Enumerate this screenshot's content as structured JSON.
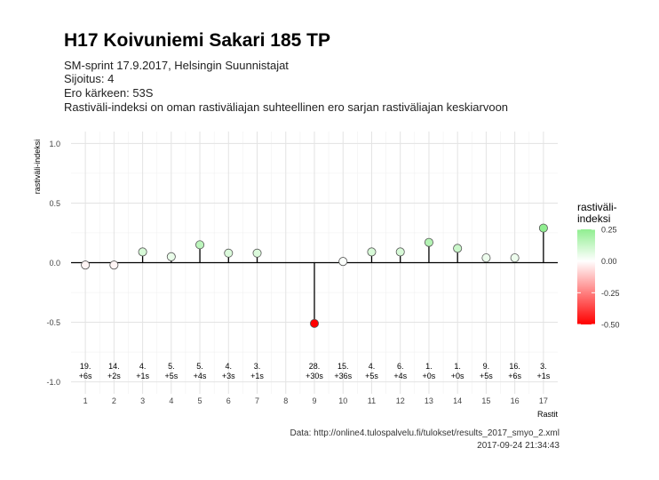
{
  "title": "H17 Koivuniemi Sakari 185 TP",
  "subtitle_lines": [
    "SM-sprint 17.9.2017, Helsingin Suunnistajat",
    "Sijoitus: 4",
    "Ero kärkeen: 53S",
    "Rastiväli-indeksi on oman rastiväliajan suhteellinen ero sarjan rastiväliajan keskiarvoon"
  ],
  "caption_source": "Data: http://online4.tulospalvelu.fi/tulokset/results_2017_smyo_2.xml",
  "caption_time": "2017-09-24 21:34:43",
  "chart_data": {
    "type": "scatter",
    "style": "lollipop",
    "xlabel": "Rastit",
    "ylabel": "rastiväli-indeksi",
    "ylim": [
      -1.0,
      1.0
    ],
    "yticks": [
      "1.0",
      "0.5",
      "0.0",
      "-0.5",
      "-1.0"
    ],
    "ytick_values": [
      1.0,
      0.5,
      0.0,
      -0.5,
      -1.0
    ],
    "xticks": [
      "1",
      "2",
      "3",
      "4",
      "5",
      "6",
      "7",
      "8",
      "9",
      "10",
      "11",
      "12",
      "13",
      "14",
      "15",
      "16",
      "17"
    ],
    "points": [
      {
        "x": 1,
        "y": -0.02,
        "label_rank": "19.",
        "label_diff": "+6s"
      },
      {
        "x": 2,
        "y": -0.02,
        "label_rank": "14.",
        "label_diff": "+2s"
      },
      {
        "x": 3,
        "y": 0.09,
        "label_rank": "4.",
        "label_diff": "+1s"
      },
      {
        "x": 4,
        "y": 0.05,
        "label_rank": "5.",
        "label_diff": "+5s"
      },
      {
        "x": 5,
        "y": 0.15,
        "label_rank": "5.",
        "label_diff": "+4s"
      },
      {
        "x": 6,
        "y": 0.08,
        "label_rank": "4.",
        "label_diff": "+3s"
      },
      {
        "x": 7,
        "y": 0.08,
        "label_rank": "3.",
        "label_diff": "+1s"
      },
      {
        "x": 9,
        "y": -0.51,
        "label_rank": "28.",
        "label_diff": "+30s"
      },
      {
        "x": 10,
        "y": 0.01,
        "label_rank": "15.",
        "label_diff": "+36s"
      },
      {
        "x": 11,
        "y": 0.09,
        "label_rank": "4.",
        "label_diff": "+5s"
      },
      {
        "x": 12,
        "y": 0.09,
        "label_rank": "6.",
        "label_diff": "+4s"
      },
      {
        "x": 13,
        "y": 0.17,
        "label_rank": "1.",
        "label_diff": "+0s"
      },
      {
        "x": 14,
        "y": 0.12,
        "label_rank": "1.",
        "label_diff": "+0s"
      },
      {
        "x": 15,
        "y": 0.04,
        "label_rank": "9.",
        "label_diff": "+5s"
      },
      {
        "x": 16,
        "y": 0.04,
        "label_rank": "16.",
        "label_diff": "+6s"
      },
      {
        "x": 17,
        "y": 0.29,
        "label_rank": "3.",
        "label_diff": "+1s"
      }
    ],
    "legend": {
      "title": "rastiväli-\nindeksi",
      "ticks": [
        "0.25",
        "0.00",
        "-0.25",
        "-0.50"
      ],
      "tick_values": [
        0.25,
        0.0,
        -0.25,
        -0.5
      ],
      "range": [
        -0.5,
        0.25
      ],
      "colors": {
        "low": "#ff0000",
        "mid": "#ffffff",
        "high": "#90ee90"
      },
      "placement": "right"
    },
    "grid": true,
    "colors": {
      "line": "#000000",
      "grid_major": "#e3e3e3",
      "grid_minor": "#f1f1f1",
      "point_stroke": "#555555"
    }
  }
}
